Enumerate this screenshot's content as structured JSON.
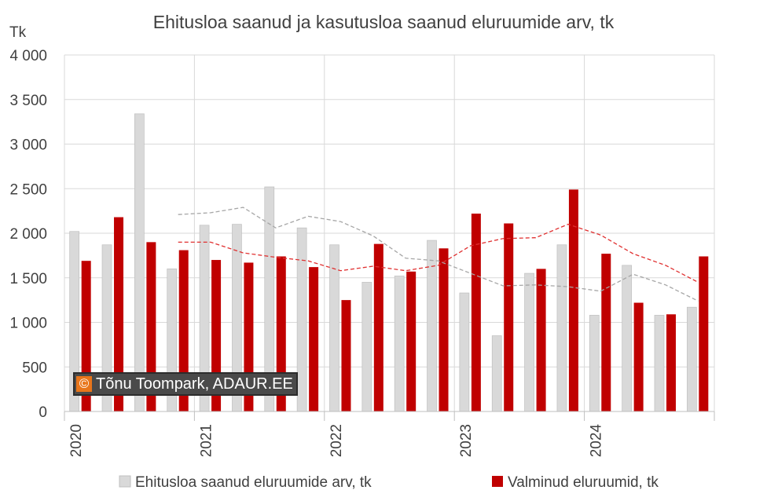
{
  "chart_data": {
    "type": "bar",
    "title": "Ehitusloa saanud ja kasutusloa saanud eluruumide arv, tk",
    "ylabel": "Tk",
    "ylim": [
      0,
      4000
    ],
    "yticks": [
      0,
      500,
      1000,
      1500,
      2000,
      2500,
      3000,
      3500,
      4000
    ],
    "ytick_labels": [
      "0",
      "500",
      "1 000",
      "1 500",
      "2 000",
      "2 500",
      "3 000",
      "3 500",
      "4 000"
    ],
    "year_labels": [
      "2020",
      "2021",
      "2022",
      "2023",
      "2024"
    ],
    "categories": [
      "2020 Q1",
      "2020 Q2",
      "2020 Q3",
      "2020 Q4",
      "2021 Q1",
      "2021 Q2",
      "2021 Q3",
      "2021 Q4",
      "2022 Q1",
      "2022 Q2",
      "2022 Q3",
      "2022 Q4",
      "2023 Q1",
      "2023 Q2",
      "2023 Q3",
      "2023 Q4",
      "2024 Q1",
      "2024 Q2",
      "2024 Q3",
      "2024 Q4"
    ],
    "grid": true,
    "legend_position": "bottom",
    "series": [
      {
        "name": "Ehitusloa saanud eluruumide arv, tk",
        "color": "#d9d9d9",
        "values": [
          2020,
          1870,
          3340,
          1600,
          2090,
          2100,
          2520,
          2060,
          1870,
          1450,
          1520,
          1920,
          1330,
          850,
          1550,
          1870,
          1080,
          1640,
          1080,
          1170
        ]
      },
      {
        "name": "Valminud eluruumid, tk",
        "color": "#c00000",
        "values": [
          1690,
          2180,
          1900,
          1810,
          1700,
          1670,
          1740,
          1620,
          1250,
          1880,
          1570,
          1830,
          2220,
          2110,
          1600,
          2490,
          1770,
          1220,
          1090,
          1740
        ]
      }
    ],
    "trendlines": [
      {
        "of_series": 0,
        "color": "#a6a6a6",
        "style": "dashed",
        "x_index": [
          3,
          4,
          5,
          6,
          7,
          8,
          9,
          10,
          11,
          12,
          13,
          14,
          15,
          16,
          17,
          18,
          19
        ],
        "values": [
          2210,
          2230,
          2290,
          2060,
          2190,
          2130,
          1970,
          1720,
          1690,
          1550,
          1410,
          1420,
          1400,
          1350,
          1540,
          1420,
          1240
        ]
      },
      {
        "of_series": 1,
        "color": "#e03030",
        "style": "dashed",
        "x_index": [
          3,
          4,
          5,
          6,
          7,
          8,
          9,
          10,
          11,
          12,
          13,
          14,
          15,
          16,
          17,
          18,
          19
        ],
        "values": [
          1900,
          1900,
          1780,
          1730,
          1690,
          1580,
          1630,
          1580,
          1640,
          1860,
          1940,
          1950,
          2100,
          1980,
          1770,
          1640,
          1450
        ]
      }
    ]
  },
  "watermark": {
    "symbol": "©",
    "text": "Tõnu Toompark, ADAUR.EE"
  }
}
